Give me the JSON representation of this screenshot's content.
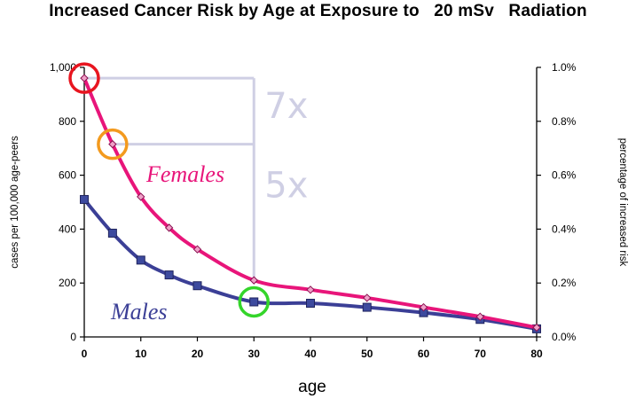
{
  "title": "Increased Cancer Risk by Age at Exposure to   20 mSv   Radiation",
  "chart_data": {
    "type": "line",
    "title": "Increased Cancer Risk by Age at Exposure to   20 mSv   Radiation",
    "xlabel": "age",
    "ylabel": "cases per 100,000 age-peers",
    "y2label": "percentage of increased risk",
    "xlim": [
      0,
      80
    ],
    "ylim": [
      0,
      1000
    ],
    "y2lim": [
      0,
      1.0
    ],
    "xticks": [
      "0",
      "10",
      "20",
      "30",
      "40",
      "50",
      "60",
      "70",
      "80"
    ],
    "yticks": [
      "0",
      "200",
      "400",
      "600",
      "800",
      "1,000"
    ],
    "y2ticks": [
      "0.0%",
      "0.2%",
      "0.4%",
      "0.6%",
      "0.8%",
      "1.0%"
    ],
    "grid": false,
    "series": [
      {
        "name": "Females",
        "color": "#e8157a",
        "marker": "diamond",
        "x": [
          0,
          5,
          10,
          15,
          20,
          30,
          40,
          50,
          60,
          70,
          80
        ],
        "values": [
          960,
          715,
          520,
          405,
          325,
          210,
          175,
          145,
          110,
          75,
          35
        ]
      },
      {
        "name": "Males",
        "color": "#3b3f96",
        "marker": "square",
        "x": [
          0,
          5,
          10,
          15,
          20,
          30,
          40,
          50,
          60,
          70,
          80
        ],
        "values": [
          510,
          385,
          285,
          230,
          190,
          130,
          125,
          110,
          90,
          65,
          30
        ]
      }
    ],
    "annotations": [
      {
        "text": "7x",
        "color": "#cfcfe4"
      },
      {
        "text": "5x",
        "color": "#cfcfe4"
      }
    ],
    "highlight_circles": [
      {
        "series": "Females",
        "x": 0,
        "color": "#e8151f"
      },
      {
        "series": "Females",
        "x": 5,
        "color": "#f39a1e"
      },
      {
        "series": "Males",
        "x": 30,
        "color": "#34d52a"
      }
    ]
  }
}
